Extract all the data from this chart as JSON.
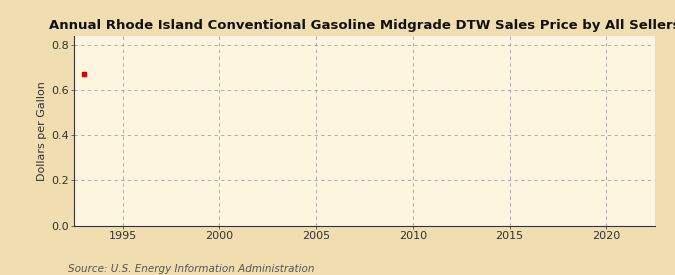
{
  "title": "Annual Rhode Island Conventional Gasoline Midgrade DTW Sales Price by All Sellers",
  "ylabel": "Dollars per Gallon",
  "source": "Source: U.S. Energy Information Administration",
  "data_x": [
    1993
  ],
  "data_y": [
    0.67
  ],
  "data_color": "#cc0000",
  "xlim": [
    1992.5,
    2022.5
  ],
  "ylim": [
    0.0,
    0.84
  ],
  "yticks": [
    0.0,
    0.2,
    0.4,
    0.6,
    0.8
  ],
  "xticks": [
    1995,
    2000,
    2005,
    2010,
    2015,
    2020
  ],
  "bg_color": "#f0deb0",
  "plot_bg_color": "#fdf5e0",
  "grid_color": "#999999",
  "title_fontsize": 9.5,
  "label_fontsize": 8,
  "tick_fontsize": 8,
  "source_fontsize": 7.5
}
